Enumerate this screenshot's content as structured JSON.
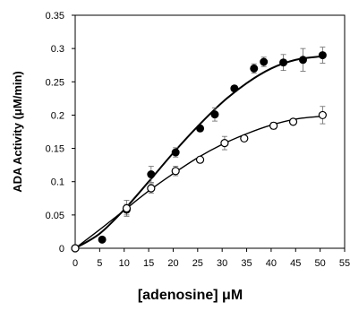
{
  "chart_data": {
    "type": "scatter",
    "xlabel": "[adenosine] μM",
    "ylabel": "ADA Activity (μM/min)",
    "xlim": [
      0,
      55
    ],
    "ylim": [
      0,
      0.35
    ],
    "x_ticks": [
      0,
      5,
      10,
      15,
      20,
      25,
      30,
      35,
      40,
      45,
      50,
      55
    ],
    "y_ticks": [
      0,
      0.05,
      0.1,
      0.15,
      0.2,
      0.25,
      0.3,
      0.35
    ],
    "x_tick_labels": [
      "0",
      "5",
      "10",
      "15",
      "20",
      "25",
      "30",
      "35",
      "40",
      "45",
      "50",
      "55"
    ],
    "y_tick_labels": [
      "0",
      "0.05",
      "0.1",
      "0.15",
      "0.2",
      "0.25",
      "0.3",
      "0.35"
    ],
    "grid": false,
    "legend": "none",
    "series": [
      {
        "marker": "filled-circle",
        "color": "#000000",
        "points": [
          {
            "x": 0,
            "y": 0.0,
            "err": 0.0
          },
          {
            "x": 5.5,
            "y": 0.013,
            "err": 0.003
          },
          {
            "x": 10.5,
            "y": 0.058,
            "err": 0.008
          },
          {
            "x": 15.5,
            "y": 0.111,
            "err": 0.012
          },
          {
            "x": 20.5,
            "y": 0.144,
            "err": 0.007
          },
          {
            "x": 25.5,
            "y": 0.18,
            "err": 0.004
          },
          {
            "x": 28.5,
            "y": 0.201,
            "err": 0.01
          },
          {
            "x": 32.5,
            "y": 0.24,
            "err": 0.004
          },
          {
            "x": 36.5,
            "y": 0.27,
            "err": 0.007
          },
          {
            "x": 38.5,
            "y": 0.28,
            "err": 0.007
          },
          {
            "x": 42.5,
            "y": 0.279,
            "err": 0.012
          },
          {
            "x": 46.5,
            "y": 0.283,
            "err": 0.017
          },
          {
            "x": 50.5,
            "y": 0.29,
            "err": 0.012
          }
        ],
        "fit": [
          {
            "x": 0,
            "y": 0.0
          },
          {
            "x": 5,
            "y": 0.022
          },
          {
            "x": 10,
            "y": 0.058
          },
          {
            "x": 15,
            "y": 0.1
          },
          {
            "x": 20,
            "y": 0.143
          },
          {
            "x": 25,
            "y": 0.183
          },
          {
            "x": 30,
            "y": 0.219
          },
          {
            "x": 35,
            "y": 0.248
          },
          {
            "x": 40,
            "y": 0.27
          },
          {
            "x": 45,
            "y": 0.283
          },
          {
            "x": 50,
            "y": 0.288
          },
          {
            "x": 51,
            "y": 0.288
          }
        ]
      },
      {
        "marker": "open-circle",
        "color": "#000000",
        "points": [
          {
            "x": 0,
            "y": 0.0,
            "err": 0.0
          },
          {
            "x": 10.5,
            "y": 0.06,
            "err": 0.012
          },
          {
            "x": 15.5,
            "y": 0.09,
            "err": 0.007
          },
          {
            "x": 20.5,
            "y": 0.116,
            "err": 0.007
          },
          {
            "x": 25.5,
            "y": 0.133,
            "err": 0.004
          },
          {
            "x": 30.5,
            "y": 0.158,
            "err": 0.01
          },
          {
            "x": 34.5,
            "y": 0.165,
            "err": 0.004
          },
          {
            "x": 40.5,
            "y": 0.184,
            "err": 0.005
          },
          {
            "x": 44.5,
            "y": 0.19,
            "err": 0.003
          },
          {
            "x": 50.5,
            "y": 0.2,
            "err": 0.013
          }
        ],
        "fit": [
          {
            "x": 0,
            "y": 0.0
          },
          {
            "x": 5,
            "y": 0.028
          },
          {
            "x": 10,
            "y": 0.057
          },
          {
            "x": 15,
            "y": 0.086
          },
          {
            "x": 20,
            "y": 0.112
          },
          {
            "x": 25,
            "y": 0.136
          },
          {
            "x": 30,
            "y": 0.156
          },
          {
            "x": 35,
            "y": 0.172
          },
          {
            "x": 40,
            "y": 0.185
          },
          {
            "x": 45,
            "y": 0.194
          },
          {
            "x": 50,
            "y": 0.198
          },
          {
            "x": 51,
            "y": 0.198
          }
        ]
      }
    ]
  }
}
